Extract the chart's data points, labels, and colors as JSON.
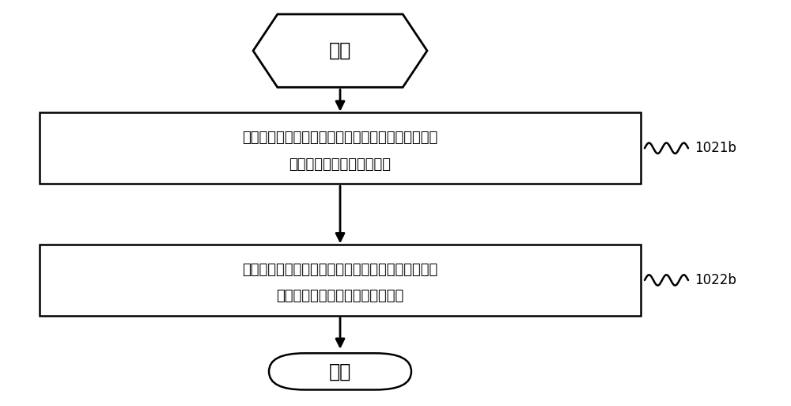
{
  "bg_color": "#ffffff",
  "line_color": "#000000",
  "text_color": "#000000",
  "start_label": "开始",
  "box1_line1": "从所述第一天线模式和所述第二天线模式中，选出网",
  "box1_line2": "络信号最好的目标天线模式",
  "box2_line1": "根据所述数据通信网络，将所述移动终端切换至与所",
  "box2_line2": "述目标天线模式相匹配的横屏模式",
  "end_label": "结束",
  "ref1": "1021b",
  "ref2": "1022b",
  "fig_width": 10.0,
  "fig_height": 5.13,
  "dpi": 100
}
